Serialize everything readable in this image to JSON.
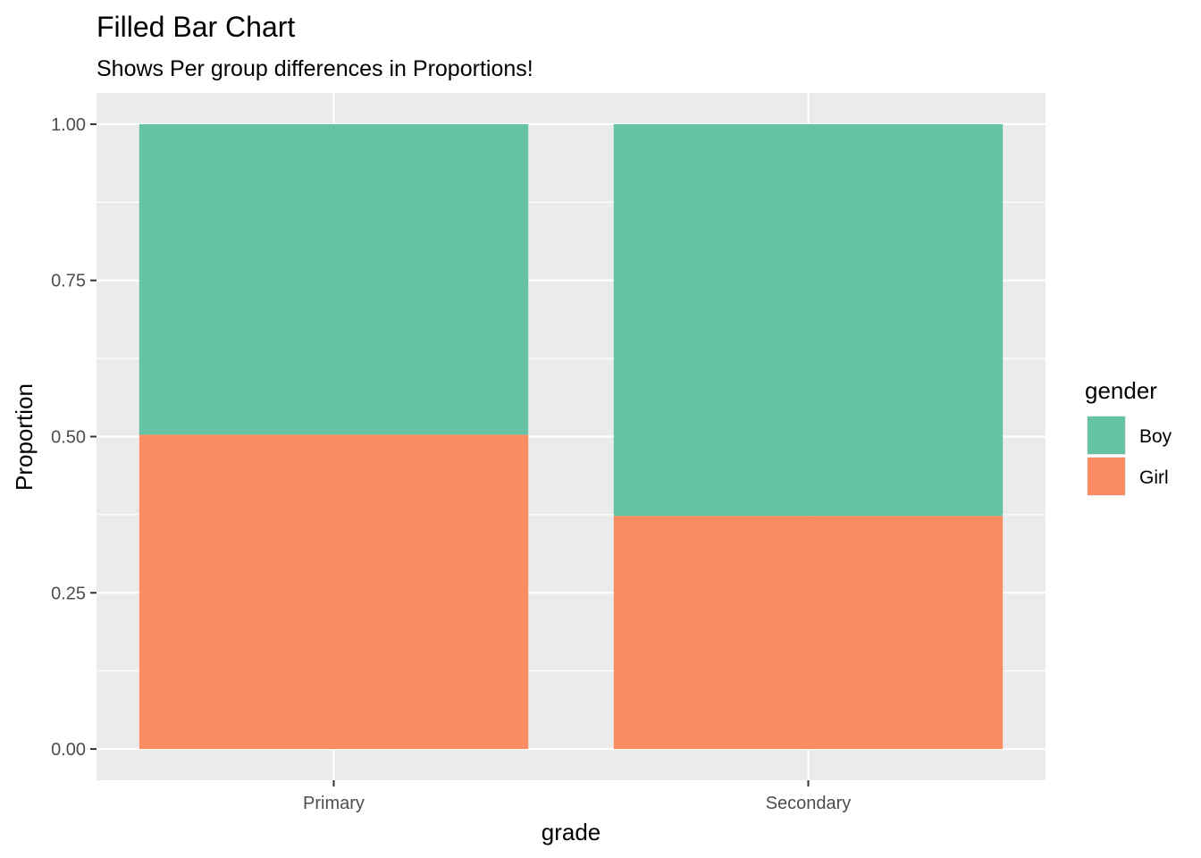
{
  "chart_data": {
    "type": "bar",
    "stacked": true,
    "position": "fill",
    "title": "Filled Bar Chart",
    "subtitle": "Shows Per group differences in Proportions!",
    "xlabel": "grade",
    "ylabel": "Proportion",
    "categories": [
      "Primary",
      "Secondary"
    ],
    "series": [
      {
        "name": "Boy",
        "values": [
          0.497,
          0.627
        ],
        "color": "#66C2A5"
      },
      {
        "name": "Girl",
        "values": [
          0.503,
          0.373
        ],
        "color": "#FC8D62"
      }
    ],
    "ylim": [
      -0.05,
      1.05
    ],
    "yticks": [
      0,
      0.25,
      0.5,
      0.75,
      1
    ],
    "ytick_labels": [
      "0.00",
      "0.25",
      "0.50",
      "0.75",
      "1.00"
    ],
    "legend": {
      "title": "gender",
      "placement": "right",
      "entries": [
        "Boy",
        "Girl"
      ]
    },
    "grid": true,
    "panel_background": "#EBEBEB",
    "gridline_color": "#FFFFFF",
    "tick_color": "#333333"
  }
}
